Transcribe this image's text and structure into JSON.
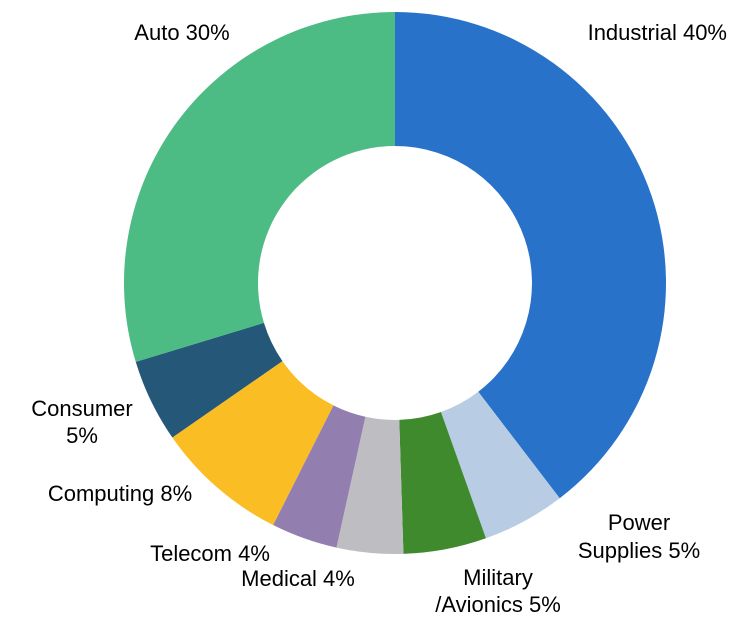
{
  "chart_data": {
    "type": "pie",
    "donut": true,
    "categories": [
      "Industrial",
      "Power Supplies",
      "Military /Avionics",
      "Medical",
      "Telecom",
      "Computing",
      "Consumer",
      "Auto"
    ],
    "values": [
      40,
      5,
      5,
      4,
      4,
      8,
      5,
      30
    ],
    "colors": [
      "#2872c9",
      "#b8cce4",
      "#3f8a2c",
      "#bdbdc2",
      "#927fb0",
      "#fbbd24",
      "#255778",
      "#4dbb84"
    ],
    "labels": [
      [
        "Industrial 40%"
      ],
      [
        "Power",
        "Supplies 5%"
      ],
      [
        "Military",
        "/Avionics 5%"
      ],
      [
        "Medical 4%"
      ],
      [
        "Telecom 4%"
      ],
      [
        "Computing 8%"
      ],
      [
        "Consumer",
        "5%"
      ],
      [
        "Auto 30%"
      ]
    ],
    "title": "",
    "legend": "none"
  }
}
